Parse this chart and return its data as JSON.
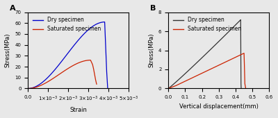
{
  "panel_A": {
    "label": "A",
    "dry_color": "#0000cc",
    "sat_color": "#cc2200",
    "xlabel": "Strain",
    "ylabel": "Stress(MPa)",
    "xlim": [
      0.0,
      0.005
    ],
    "ylim": [
      0,
      70
    ],
    "yticks": [
      0,
      10,
      20,
      30,
      40,
      50,
      60,
      70
    ],
    "xticks": [
      0.0,
      0.001,
      0.002,
      0.003,
      0.004,
      0.005
    ],
    "legend_labels": [
      "Dry specimen",
      "Saturated specimen"
    ]
  },
  "panel_B": {
    "label": "B",
    "dry_color": "#333333",
    "sat_color": "#cc2200",
    "xlabel": "Vertical displacement(mm)",
    "ylabel": "Stress(MPa)",
    "xlim": [
      0.0,
      0.6
    ],
    "ylim": [
      0,
      8
    ],
    "yticks": [
      0,
      2,
      4,
      6,
      8
    ],
    "xticks": [
      0.0,
      0.1,
      0.2,
      0.3,
      0.4,
      0.5,
      0.6
    ],
    "legend_labels": [
      "Dry specimen",
      "Saturated specimen"
    ]
  },
  "bg_color": "#e8e8e8",
  "legend_fontsize": 5.5,
  "axis_label_fontsize": 6,
  "tick_fontsize": 5
}
